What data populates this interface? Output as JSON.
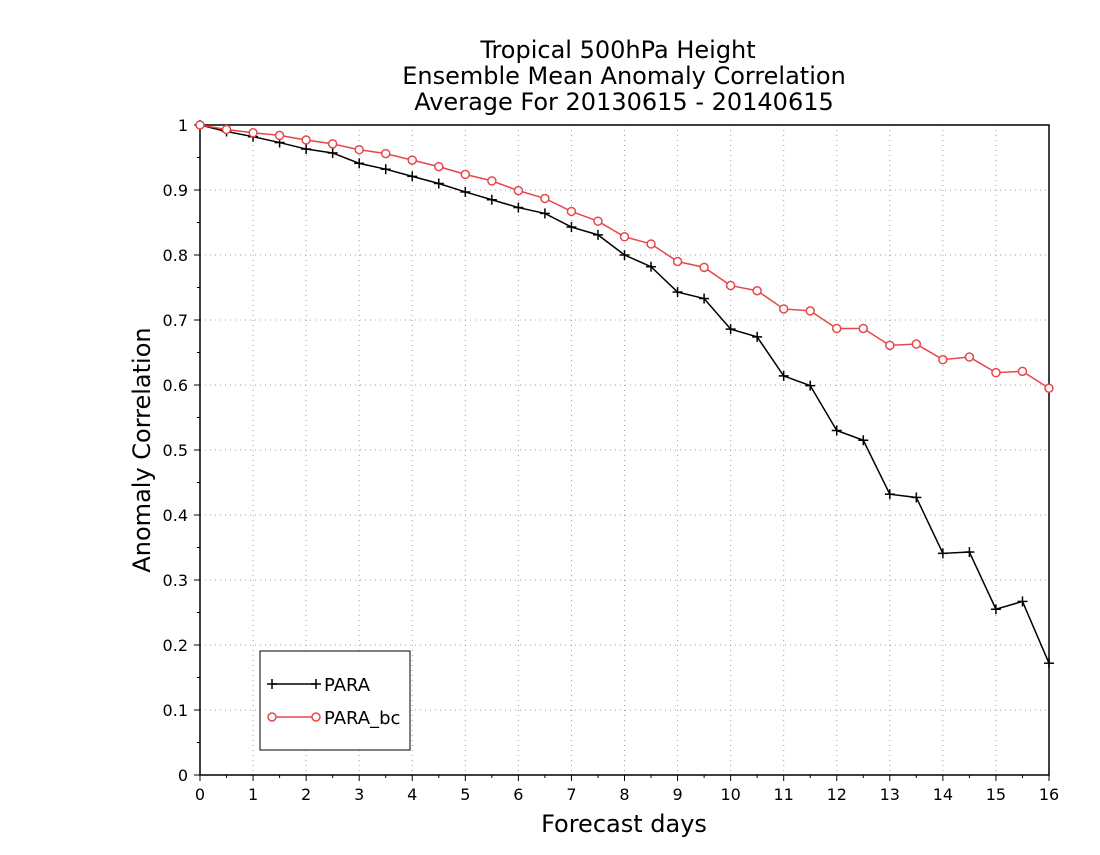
{
  "chart_data": {
    "type": "line",
    "title": [
      "Tropical 500hPa Height",
      "Ensemble Mean Anomaly Correlation",
      "Average For 20130615 - 20140615"
    ],
    "xlabel": "Forecast days",
    "ylabel": "Anomaly Correlation",
    "xlim": [
      0,
      16
    ],
    "ylim": [
      0,
      1
    ],
    "xticks": [
      "0",
      "1",
      "2",
      "3",
      "4",
      "5",
      "6",
      "7",
      "8",
      "9",
      "10",
      "11",
      "12",
      "13",
      "14",
      "15",
      "16"
    ],
    "yticks": [
      "0",
      "0.1",
      "0.2",
      "0.3",
      "0.4",
      "0.5",
      "0.6",
      "0.7",
      "0.8",
      "0.9",
      "1"
    ],
    "grid": true,
    "legend_position": "bottom-left",
    "x": [
      0,
      0.5,
      1,
      1.5,
      2,
      2.5,
      3,
      3.5,
      4,
      4.5,
      5,
      5.5,
      6,
      6.5,
      7,
      7.5,
      8,
      8.5,
      9,
      9.5,
      10,
      10.5,
      11,
      11.5,
      12,
      12.5,
      13,
      13.5,
      14,
      14.5,
      15,
      15.5,
      16
    ],
    "series": [
      {
        "name": "PARA",
        "color": "#000000",
        "marker": "plus",
        "values": [
          1.0,
          0.99,
          0.982,
          0.973,
          0.963,
          0.957,
          0.941,
          0.932,
          0.921,
          0.91,
          0.897,
          0.885,
          0.873,
          0.864,
          0.843,
          0.831,
          0.8,
          0.782,
          0.743,
          0.733,
          0.686,
          0.674,
          0.614,
          0.599,
          0.53,
          0.515,
          0.432,
          0.427,
          0.341,
          0.343,
          0.255,
          0.267,
          0.172
        ]
      },
      {
        "name": "PARA_bc",
        "color": "#e8474a",
        "marker": "circle",
        "values": [
          1.0,
          0.993,
          0.988,
          0.984,
          0.977,
          0.971,
          0.962,
          0.956,
          0.946,
          0.936,
          0.924,
          0.914,
          0.899,
          0.887,
          0.867,
          0.852,
          0.828,
          0.817,
          0.79,
          0.781,
          0.753,
          0.745,
          0.717,
          0.714,
          0.687,
          0.687,
          0.661,
          0.663,
          0.639,
          0.643,
          0.619,
          0.621,
          0.595
        ]
      }
    ]
  }
}
